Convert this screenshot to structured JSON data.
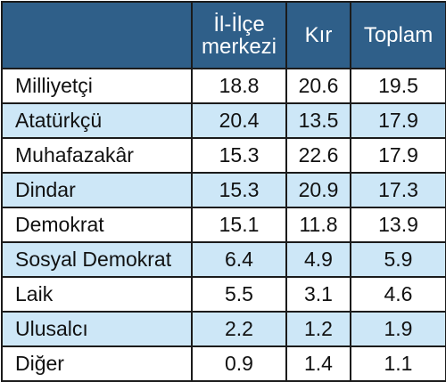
{
  "table": {
    "header": {
      "stub": "",
      "columns": [
        {
          "lines": [
            "İl-İlçe",
            "merkezi"
          ]
        },
        {
          "lines": [
            "Kır"
          ]
        },
        {
          "lines": [
            "Toplam"
          ]
        }
      ]
    },
    "rows": [
      {
        "label": "Milliyetçi",
        "values": [
          "18.8",
          "20.6",
          "19.5"
        ]
      },
      {
        "label": "Atatürkçü",
        "values": [
          "20.4",
          "13.5",
          "17.9"
        ]
      },
      {
        "label": "Muhafazakâr",
        "values": [
          "15.3",
          "22.6",
          "17.9"
        ]
      },
      {
        "label": "Dindar",
        "values": [
          "15.3",
          "20.9",
          "17.3"
        ]
      },
      {
        "label": "Demokrat",
        "values": [
          "15.1",
          "11.8",
          "13.9"
        ]
      },
      {
        "label": "Sosyal Demokrat",
        "values": [
          "6.4",
          "4.9",
          "5.9"
        ]
      },
      {
        "label": "Laik",
        "values": [
          "5.5",
          "3.1",
          "4.6"
        ]
      },
      {
        "label": "Ulusalcı",
        "values": [
          "2.2",
          "1.2",
          "1.9"
        ]
      },
      {
        "label": "Diğer",
        "values": [
          "0.9",
          "1.4",
          "1.1"
        ]
      }
    ]
  },
  "colors": {
    "header_bg": "#2f5f89",
    "header_text": "#ffffff",
    "alt_row_bg": "#cde7f7",
    "plain_row_bg": "#ffffff",
    "border": "#1b1b1b"
  }
}
